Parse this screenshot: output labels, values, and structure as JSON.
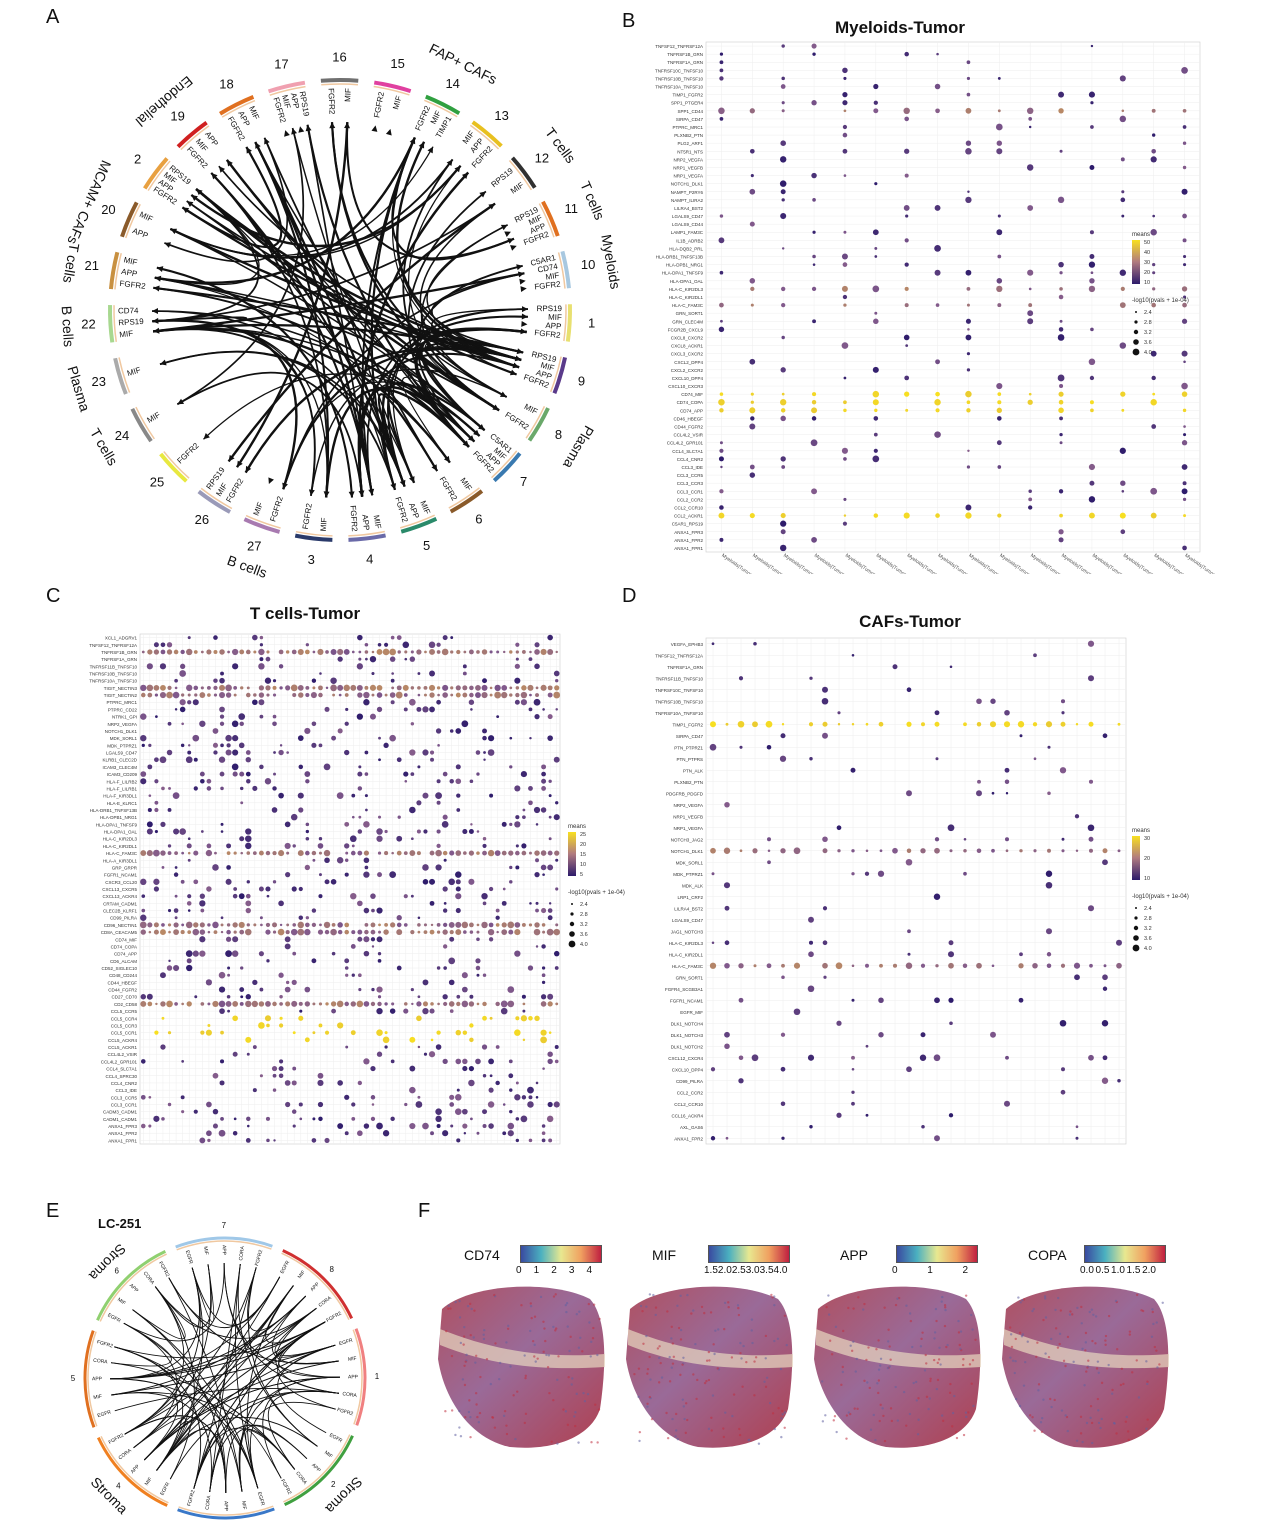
{
  "panel_labels": {
    "a": "A",
    "b": "B",
    "c": "C",
    "d": "D",
    "e": "E",
    "f": "F"
  },
  "panel_a": {
    "sectors": [
      {
        "num": "1",
        "label": "",
        "color": "#e8e070",
        "genes": [
          "RPS19",
          "MIF",
          "APP",
          "FGFR2"
        ]
      },
      {
        "num": "9",
        "label": "",
        "color": "#5a3a8a",
        "genes": [
          "RPS19",
          "MIF",
          "APP",
          "FGFR2"
        ]
      },
      {
        "num": "8",
        "label": "Plasma",
        "color": "#6aa86a",
        "genes": [
          "MIF",
          "FGFR2"
        ]
      },
      {
        "num": "7",
        "label": "",
        "color": "#3a7ab0",
        "genes": [
          "C5AR1",
          "MIF",
          "APP",
          "FGFR2"
        ]
      },
      {
        "num": "6",
        "label": "",
        "color": "#8a5a2a",
        "genes": [
          "MIF",
          "FGFR2"
        ]
      },
      {
        "num": "5",
        "label": "",
        "color": "#2a8a6a",
        "genes": [
          "MIF",
          "APP",
          "FGFR2"
        ]
      },
      {
        "num": "4",
        "label": "",
        "color": "#6a6aa8",
        "genes": [
          "MIF",
          "APP",
          "FGFR2"
        ]
      },
      {
        "num": "3",
        "label": "",
        "color": "#2a3a6a",
        "genes": [
          "MIF",
          "FGFR2"
        ]
      },
      {
        "num": "27",
        "label": "B cells",
        "color": "#a87ab0",
        "genes": [
          "FGFR2",
          "MIF"
        ]
      },
      {
        "num": "26",
        "label": "",
        "color": "#9a9ab8",
        "genes": [
          "FGFR2",
          "MIF",
          "RPS19"
        ]
      },
      {
        "num": "25",
        "label": "",
        "color": "#e8e840",
        "genes": [
          "FGFR2"
        ]
      },
      {
        "num": "24",
        "label": "T cells",
        "color": "#888888",
        "genes": [
          "MIF"
        ]
      },
      {
        "num": "23",
        "label": "Plasma",
        "color": "#aaaaaa",
        "genes": [
          "MIF"
        ]
      },
      {
        "num": "22",
        "label": "B cells",
        "color": "#a8d890",
        "genes": [
          "MIF",
          "RPS19",
          "CD74"
        ]
      },
      {
        "num": "21",
        "label": "T cells",
        "color": "#c89040",
        "genes": [
          "FGFR2",
          "APP",
          "MIF"
        ]
      },
      {
        "num": "20",
        "label": "MCAM+ CAFs",
        "color": "#8a5a2a",
        "genes": [
          "APP",
          "MIF"
        ]
      },
      {
        "num": "2",
        "label": "",
        "color": "#e8a040",
        "genes": [
          "FGFR2",
          "APP",
          "MIF",
          "RPS19"
        ]
      },
      {
        "num": "19",
        "label": "Endothelial",
        "color": "#d02020",
        "genes": [
          "FGFR2",
          "MIF",
          "APP"
        ]
      },
      {
        "num": "18",
        "label": "",
        "color": "#e07020",
        "genes": [
          "FGFR2",
          "APP",
          "MIF"
        ]
      },
      {
        "num": "17",
        "label": "",
        "color": "#f0a0b0",
        "genes": [
          "FGFR2",
          "MIF",
          "APP",
          "RPS19"
        ]
      },
      {
        "num": "16",
        "label": "",
        "color": "#707070",
        "genes": [
          "FGFR2",
          "MIF"
        ]
      },
      {
        "num": "15",
        "label": "",
        "color": "#e040a0",
        "genes": [
          "FGFR2",
          "MIF"
        ]
      },
      {
        "num": "14",
        "label": "FAP+ CAFs",
        "color": "#30a040",
        "genes": [
          "FGFR2",
          "MIF",
          "TIMP1"
        ]
      },
      {
        "num": "13",
        "label": "",
        "color": "#e8c020",
        "genes": [
          "MIF",
          "APP",
          "FGFR2"
        ]
      },
      {
        "num": "12",
        "label": "T cells",
        "color": "#303030",
        "genes": [
          "RPS19",
          "MIF"
        ]
      },
      {
        "num": "11",
        "label": "T cells",
        "color": "#e07020",
        "genes": [
          "RPS19",
          "MIF",
          "APP",
          "FGFR2"
        ]
      },
      {
        "num": "10",
        "label": "Myeloids",
        "color": "#a8c8e0",
        "genes": [
          "C5AR1",
          "CD74",
          "MIF",
          "FGFR2"
        ]
      }
    ]
  },
  "panel_b": {
    "title": "Myeloids-Tumor",
    "legend_means_title": "means",
    "legend_means_ticks": [
      "50",
      "40",
      "30",
      "20",
      "10"
    ],
    "legend_size_title": "-log10(pvals + 1e-04)",
    "legend_size_ticks": [
      "2.4",
      "2.8",
      "3.2",
      "3.6",
      "4.0"
    ],
    "rows": [
      "TNFSF12_TNFRSF12A",
      "TNFRSF1B_GRN",
      "TNFRSF1A_GRN",
      "TNFRSF10C_TNFSF10",
      "TNFRSF10B_TNFSF10",
      "TNFRSF10A_TNFSF10",
      "TIMP1_FGFR2",
      "SPP1_PTGER4",
      "SPP1_CD44",
      "SIRPA_CD47",
      "PTPRC_MRC1",
      "PLXNB2_PTN",
      "PLG2_ARF1",
      "NT5R1_NTS",
      "NRP2_VEGFA",
      "NRP1_VEGFB",
      "NRP1_VEGFA",
      "NOTCH1_DLK1",
      "NAMPT_P2RY6",
      "NAMPT_ILIRA2",
      "LILRA4_BST2",
      "LGALS9_CD47",
      "LGALS9_CD44",
      "LAMP1_FAM3C",
      "IL1B_ADRB2",
      "HLA-DQB2_PRL",
      "HLA-DRB1_TNFSF13B",
      "HLA-DPB1_NRG1",
      "HLA-DPA1_TNFSF9",
      "HLA-DPA1_OAL",
      "HLA-C_KIR2DL3",
      "HLA-C_KIR2DL1",
      "HLA-C_FAM3C",
      "GRN_SORT1",
      "GRN_CLEC4M",
      "FCGR2B_CXCL9",
      "CXCL8_CXCR2",
      "CXCL8_ACKR1",
      "CXCL3_CXCR2",
      "CXCL2_DPP4",
      "CXCL2_CXCR2",
      "CXCL10_DPP4",
      "CXCL10_CXCR3",
      "CD74_MIF",
      "CD74_COPA",
      "CD74_APP",
      "CD46_HBEGF",
      "CD44_FGFR2",
      "CCL4L2_VSIR",
      "CCL4L2_GPR101",
      "CCL4_SLC7A1",
      "CCL4_CNR2",
      "CCL3_IDE",
      "CCL3_CCR5",
      "CCL3_CCR3",
      "CCL3_CCR1",
      "CCL2_CCR2",
      "CCL2_CCR10",
      "CCL2_ACKR1",
      "C5AR1_RPS19",
      "ANXA1_FPR3",
      "ANXA1_FPR2",
      "ANXA1_FPR1"
    ],
    "cols": [
      "Myeloids|Tumor_1",
      "Myeloids|Tumor_11",
      "Myeloids|Tumor_13",
      "Myeloids|Tumor_15",
      "Myeloids|Tumor_16",
      "Myeloids|Tumor_17",
      "Myeloids|Tumor_18",
      "Myeloids|Tumor_2",
      "Myeloids|Tumor_20",
      "Myeloids|Tumor_26",
      "Myeloids|Tumor_3",
      "Myeloids|Tumor_4",
      "Myeloids|Tumor_5",
      "Myeloids|Tumor_6",
      "Myeloids|Tumor_7",
      "Myeloids|Tumor_9"
    ]
  },
  "panel_c": {
    "title": "T cells-Tumor",
    "legend_means_title": "means",
    "legend_means_ticks": [
      "25",
      "20",
      "15",
      "10",
      "5"
    ],
    "legend_size_title": "-log10(pvals + 1e-04)",
    "legend_size_ticks": [
      "2.4",
      "2.8",
      "3.2",
      "3.6",
      "4.0"
    ],
    "rows": [
      "XCL1_ADGRV1",
      "TNFSF12_TNFRSF12A",
      "TNFRSF1B_GRN",
      "TNFRSF1A_GRN",
      "TNFRSF11B_TNFSF10",
      "TNFRSF10B_TNFSF10",
      "TNFRSF10A_TNFSF10",
      "TIGIT_NECTIN3",
      "TIGIT_NECTIN2",
      "PTPRC_MRC1",
      "PTPRC_CD22",
      "NTRK1_GPI",
      "NRP2_VEGFA",
      "NOTCH1_DLK1",
      "MDK_SORL1",
      "MDK_PTPRZ1",
      "LGALS9_CD47",
      "KLRB1_CLEC2D",
      "ICAM3_CLEC4M",
      "ICAM3_CD209",
      "HLA-F_LILRB2",
      "HLA-F_LILRB1",
      "HLA-F_KIR3DL1",
      "HLA-E_KLRC1",
      "HLA-DRB1_TNFSF13B",
      "HLA-DPB1_NRG1",
      "HLA-DPA1_TNFSF9",
      "HLA-DPA1_OAL",
      "HLA-C_KIR2DL3",
      "HLA-C_KIR2DL1",
      "HLA-C_FAM3C",
      "HLA-A_KIR3DL1",
      "GRP_GRPR",
      "FGFR1_NCAM1",
      "CXCR3_CCL20",
      "CXCL13_CXCR5",
      "CXCL13_ACKR4",
      "CRTAM_CADM1",
      "CLEC2B_KLRF1",
      "CD99_PILRA",
      "CD96_NECTIN1",
      "CD8A_CEACAM5",
      "CD74_MIF",
      "CD74_COPA",
      "CD74_APP",
      "CD6_ALCAM",
      "CD52_SIGLEC10",
      "CD48_CD244",
      "CD44_HBEGF",
      "CD44_FGFR2",
      "CD27_CD70",
      "CD2_CD58",
      "CCL5_CCR5",
      "CCL5_CCR4",
      "CCL5_CCR3",
      "CCL5_CCR1",
      "CCL5_ACKR4",
      "CCL5_ACKR1",
      "CCL4L2_VSIR",
      "CCL4L2_GPR101",
      "CCL4_SLC7A1",
      "CCL4_SPRC30",
      "CCL4_CNR2",
      "CCL3_IDE",
      "CCL3_CCR5",
      "CCL3_CCR1",
      "CADM3_CADM1",
      "CADM1_CADM1",
      "ANXA1_FPR3",
      "ANXA1_FPR2",
      "ANXA1_FPR1"
    ],
    "n_cols": 64
  },
  "panel_d": {
    "title": "CAFs-Tumor",
    "legend_means_title": "means",
    "legend_means_ticks": [
      "30",
      "20",
      "10"
    ],
    "legend_size_title": "-log10(pvals + 1e-04)",
    "legend_size_ticks": [
      "2.4",
      "2.8",
      "3.2",
      "3.6",
      "4.0"
    ],
    "rows": [
      "VEGFA_EPHB3",
      "TNFSF12_TNFRSF12A",
      "TNFRSF1A_GRN",
      "TNFRSF11B_TNFSF10",
      "TNFRSF10C_TNFSF10",
      "TNFRSF10B_TNFSF10",
      "TNFRSF10A_TNFSF10",
      "TIMP1_FGFR2",
      "SIRPA_CD47",
      "PTN_PTPRZ1",
      "PTN_PTPRS",
      "PTN_ALK",
      "PLXNB2_PTN",
      "PDGFRB_PDGFD",
      "NRP2_VEGFA",
      "NRP1_VEGFB",
      "NRP1_VEGFA",
      "NOTCH3_JAG2",
      "NOTCH1_DLK1",
      "MDK_SORL1",
      "MDK_PTPRZ1",
      "MDK_ALK",
      "LRP1_CRF2",
      "LILRA4_BST2",
      "LGALS9_CD47",
      "JAG1_NOTCH3",
      "HLA-C_KIR2DL3",
      "HLA-C_KIR2DL1",
      "HLA-C_FAM3C",
      "GRN_SORT1",
      "FGFR4_SCGB3A1",
      "FGFR1_NCAM1",
      "EGFR_MIF",
      "DLK1_NOTCH4",
      "DLK1_NOTCH3",
      "DLK1_NOTCH2",
      "CXCL12_CXCR4",
      "CXCL10_DPP4",
      "CD99_PILRA",
      "CCL2_CCR2",
      "CCL2_CCR10",
      "CCL16_ACKR4",
      "AXL_GAS6",
      "ANXA1_FPR2"
    ],
    "n_cols": 30
  },
  "panel_e": {
    "title": "LC-251",
    "sectors": [
      {
        "num": "1",
        "label": "",
        "color": "#f08080"
      },
      {
        "num": "2",
        "label": "Stroma",
        "color": "#40a040"
      },
      {
        "num": "3",
        "label": "",
        "color": "#3a78c8"
      },
      {
        "num": "4",
        "label": "Stroma",
        "color": "#f08020"
      },
      {
        "num": "5",
        "label": "",
        "color": "#e07020"
      },
      {
        "num": "6",
        "label": "Stroma",
        "color": "#90d070"
      },
      {
        "num": "7",
        "label": "",
        "color": "#a0c8e8"
      },
      {
        "num": "8",
        "label": "",
        "color": "#d03030"
      }
    ],
    "genes": [
      "EGFR",
      "MIF",
      "APP",
      "CORA",
      "FGFR2",
      "COPA",
      "CD74"
    ]
  },
  "panel_f": {
    "maps": [
      {
        "gene": "CD74",
        "ticks": [
          "0",
          "1",
          "2",
          "3",
          "4"
        ]
      },
      {
        "gene": "MIF",
        "ticks": [
          "1.5",
          "2.0",
          "2.5",
          "3.0",
          "3.5",
          "4.0"
        ]
      },
      {
        "gene": "APP",
        "ticks": [
          "0",
          "1",
          "2"
        ]
      },
      {
        "gene": "COPA",
        "ticks": [
          "0.0",
          "0.5",
          "1.0",
          "1.5",
          "2.0"
        ]
      }
    ]
  },
  "colors": {
    "viridis_low": "#2d1b6b",
    "viridis_mid": "#8a6a8a",
    "viridis_high": "#f8e020",
    "spectral": [
      "#3a4aa0",
      "#4ab0c0",
      "#e8e890",
      "#f0a060",
      "#c02040"
    ]
  }
}
